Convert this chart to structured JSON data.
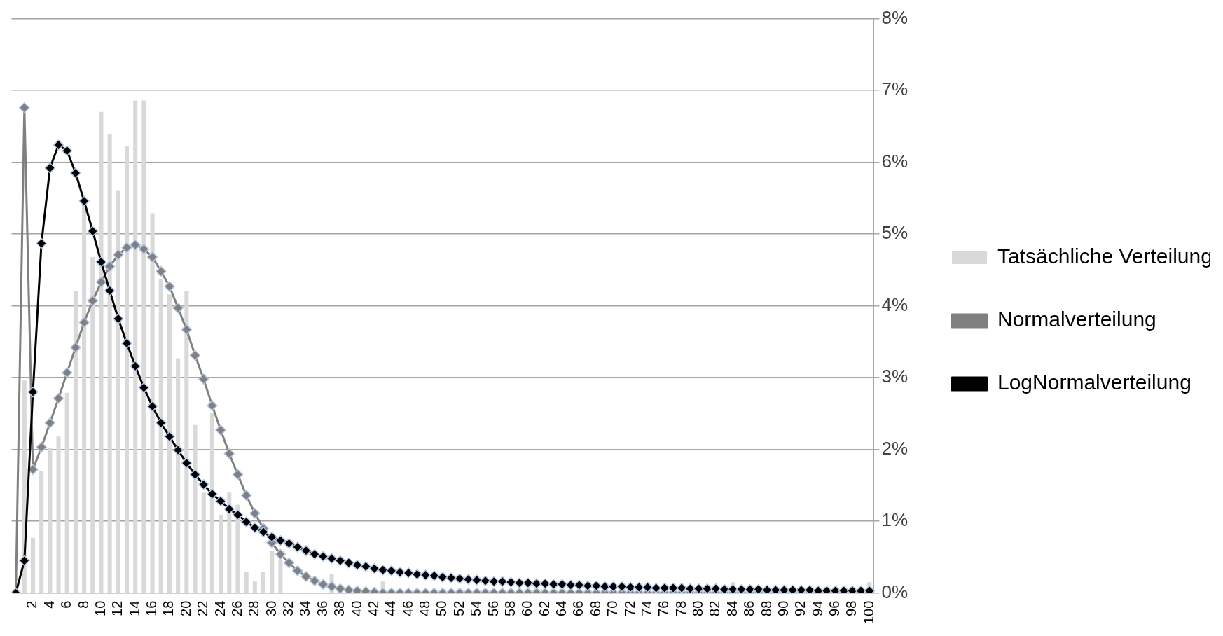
{
  "chart_data": {
    "type": "bar",
    "categories": [
      null,
      null,
      "2",
      null,
      "4",
      null,
      "6",
      null,
      "8",
      null,
      "10",
      null,
      "12",
      null,
      "14",
      null,
      "16",
      null,
      "18",
      null,
      "20",
      null,
      "22",
      null,
      "24",
      null,
      "26",
      null,
      "28",
      null,
      "30",
      null,
      "32",
      null,
      "34",
      null,
      "36",
      null,
      "38",
      null,
      "40",
      null,
      "42",
      null,
      "44",
      null,
      "46",
      null,
      "48",
      null,
      "50",
      null,
      "52",
      null,
      "54",
      null,
      "56",
      null,
      "58",
      null,
      "60",
      null,
      "62",
      null,
      "64",
      null,
      "66",
      null,
      "68",
      null,
      "70",
      null,
      "72",
      null,
      "74",
      null,
      "76",
      null,
      "78",
      null,
      "80",
      null,
      "82",
      null,
      "84",
      null,
      "86",
      null,
      "88",
      null,
      "90",
      null,
      "92",
      null,
      "94",
      null,
      "96",
      null,
      "98",
      null,
      "100"
    ],
    "series": [
      {
        "name": "Tatsächliche Verteilung",
        "color": "#d9d9d9",
        "values": [
          0,
          2.96,
          0.77,
          1.7,
          2.02,
          2.18,
          2.79,
          4.21,
          5.4,
          4.68,
          6.7,
          6.39,
          5.61,
          6.23,
          6.86,
          6.86,
          5.29,
          4.37,
          4.16,
          3.27,
          4.21,
          2.34,
          1.4,
          2.51,
          1.09,
          1.4,
          1.23,
          0.29,
          0.16,
          0.29,
          0.59,
          0.47,
          0,
          0,
          0,
          0,
          0,
          0.27,
          0,
          0,
          0,
          0,
          0,
          0.16,
          0,
          0,
          0,
          0,
          0,
          0,
          0,
          0,
          0,
          0,
          0,
          0,
          0,
          0,
          0,
          0,
          0,
          0,
          0,
          0,
          0,
          0,
          0,
          0,
          0,
          0,
          0,
          0,
          0,
          0,
          0,
          0,
          0,
          0,
          0,
          0,
          0,
          0,
          0,
          0,
          0.15,
          0,
          0,
          0,
          0,
          0,
          0,
          0,
          0,
          0,
          0,
          0,
          0,
          0,
          0,
          0,
          0.15
        ]
      },
      {
        "name": "Normalverteilung",
        "type": "line",
        "color": "#808080",
        "values": [
          0,
          6.76,
          1.72,
          2.03,
          2.37,
          2.71,
          3.07,
          3.42,
          3.77,
          4.07,
          4.33,
          4.55,
          4.71,
          4.81,
          4.85,
          4.79,
          4.68,
          4.48,
          4.27,
          3.97,
          3.67,
          3.31,
          2.98,
          2.61,
          2.27,
          1.94,
          1.65,
          1.36,
          1.11,
          0.9,
          0.7,
          0.54,
          0.42,
          0.31,
          0.23,
          0.17,
          0.12,
          0.09,
          0.06,
          0.04,
          0.03,
          0.02,
          0.01,
          0,
          0,
          0,
          0,
          0,
          0,
          0,
          0,
          0,
          0,
          0,
          0,
          0,
          0,
          0,
          0,
          0,
          0,
          0,
          0,
          0,
          0,
          0,
          0,
          0,
          0,
          0,
          0,
          0,
          0,
          0,
          0,
          0,
          0,
          0,
          0,
          0,
          0,
          0,
          0,
          0,
          0,
          0,
          0,
          0,
          0,
          0,
          0,
          0,
          0,
          0,
          0,
          0,
          0,
          0,
          0,
          0,
          0
        ]
      },
      {
        "name": "LogNormalverteilung",
        "type": "line",
        "color": "#000000",
        "values": [
          0,
          0.45,
          2.8,
          4.87,
          5.92,
          6.24,
          6.16,
          5.85,
          5.46,
          5.04,
          4.61,
          4.21,
          3.82,
          3.48,
          3.16,
          2.86,
          2.6,
          2.37,
          2.18,
          1.99,
          1.81,
          1.65,
          1.51,
          1.38,
          1.28,
          1.17,
          1.09,
          0.99,
          0.91,
          0.85,
          0.78,
          0.73,
          0.69,
          0.64,
          0.59,
          0.54,
          0.51,
          0.48,
          0.45,
          0.42,
          0.39,
          0.37,
          0.34,
          0.32,
          0.31,
          0.29,
          0.28,
          0.26,
          0.25,
          0.24,
          0.22,
          0.21,
          0.2,
          0.19,
          0.18,
          0.17,
          0.16,
          0.16,
          0.15,
          0.14,
          0.14,
          0.13,
          0.13,
          0.12,
          0.12,
          0.11,
          0.11,
          0.1,
          0.1,
          0.09,
          0.09,
          0.09,
          0.08,
          0.08,
          0.08,
          0.07,
          0.07,
          0.07,
          0.07,
          0.06,
          0.06,
          0.06,
          0.06,
          0.05,
          0.05,
          0.05,
          0.05,
          0.05,
          0.04,
          0.04,
          0.04,
          0.04,
          0.04,
          0.04,
          0.03,
          0.03,
          0.03,
          0.03,
          0.03,
          0.03,
          0.03
        ]
      }
    ],
    "ylim": [
      0,
      8
    ],
    "yticks": [
      {
        "value": 0,
        "label": "0%"
      },
      {
        "value": 1,
        "label": "1%"
      },
      {
        "value": 2,
        "label": "2%"
      },
      {
        "value": 3,
        "label": "3%"
      },
      {
        "value": 4,
        "label": "4%"
      },
      {
        "value": 5,
        "label": "5%"
      },
      {
        "value": 6,
        "label": "6%"
      },
      {
        "value": 7,
        "label": "7%"
      },
      {
        "value": 8,
        "label": "8%"
      }
    ],
    "grid": "y",
    "legend": "right",
    "marker": "diamond",
    "line_style": "solid"
  }
}
